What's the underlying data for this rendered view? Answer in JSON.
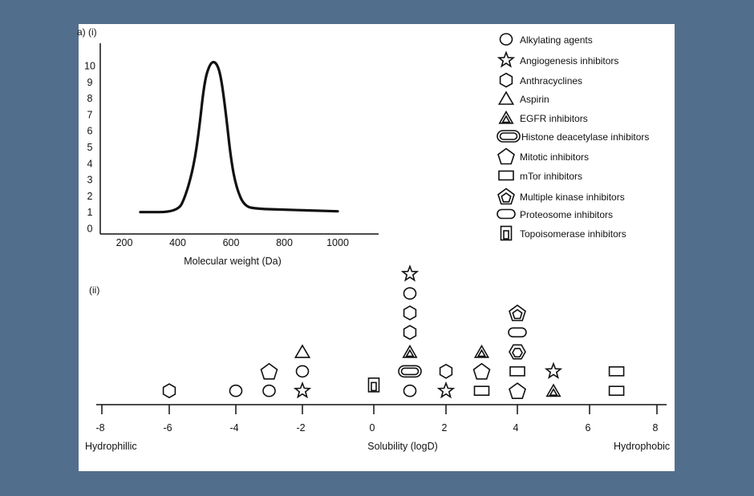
{
  "colors": {
    "background": "#526e8d",
    "panel": "#ffffff",
    "ink": "#111111"
  },
  "legend": [
    {
      "label": "Alkylating agents",
      "marker": "circle"
    },
    {
      "label": "Angiogenesis inhibitors",
      "marker": "star"
    },
    {
      "label": "Anthracyclines",
      "marker": "hexagon"
    },
    {
      "label": "Aspirin",
      "marker": "triangle"
    },
    {
      "label": "EGFR inhibitors",
      "marker": "double-triangle"
    },
    {
      "label": "Histone deacetylase inhibitors",
      "marker": "double-stadium"
    },
    {
      "label": "Mitotic inhibitors",
      "marker": "pentagon"
    },
    {
      "label": "mTor inhibitors",
      "marker": "rectangle"
    },
    {
      "label": "Multiple kinase inhibitors",
      "marker": "double-pentagon"
    },
    {
      "label": "Proteosome inhibitors",
      "marker": "stadium"
    },
    {
      "label": "Topoisomerase inhibitors",
      "marker": "double-square"
    }
  ],
  "chart_data": [
    {
      "type": "line",
      "panel_label": "a) (i)",
      "xlabel": "Molecular weight (Da)",
      "ylabel": "",
      "xticks": [
        200,
        400,
        600,
        800,
        1000
      ],
      "yticks": [
        0,
        1,
        2,
        3,
        4,
        5,
        6,
        7,
        8,
        9,
        10
      ],
      "xlim": [
        120,
        1150
      ],
      "ylim": [
        0,
        10.5
      ],
      "series": [
        {
          "name": "distribution",
          "x": [
            260,
            400,
            430,
            460,
            480,
            500,
            520,
            540,
            560,
            580,
            600,
            620,
            650,
            700,
            800,
            900,
            1000
          ],
          "y": [
            1,
            1,
            2,
            3.8,
            6,
            9,
            10.1,
            10.3,
            9.6,
            7.2,
            4.2,
            2.5,
            1.35,
            1.2,
            1.15,
            1.1,
            1.05
          ]
        }
      ]
    },
    {
      "type": "scatter",
      "panel_label": "(ii)",
      "xlabel": "Solubility (logD)",
      "left_label": "Hydrophillic",
      "right_label": "Hydrophobic",
      "xticks": [
        -8,
        -6,
        -4,
        -2,
        0,
        2,
        4,
        6,
        8
      ],
      "xlim": [
        -8,
        8.2
      ],
      "note": "stack = vertical stacking level of marker above axis",
      "points": [
        {
          "x": -6,
          "stack": 1,
          "marker": "hexagon"
        },
        {
          "x": -4,
          "stack": 1,
          "marker": "circle"
        },
        {
          "x": -3,
          "stack": 1,
          "marker": "circle"
        },
        {
          "x": -3,
          "stack": 2,
          "marker": "pentagon"
        },
        {
          "x": -2,
          "stack": 1,
          "marker": "star"
        },
        {
          "x": -2,
          "stack": 2,
          "marker": "circle"
        },
        {
          "x": -2,
          "stack": 3,
          "marker": "triangle"
        },
        {
          "x": 0,
          "stack": 1.3,
          "marker": "double-square"
        },
        {
          "x": 1,
          "stack": 1,
          "marker": "circle"
        },
        {
          "x": 1,
          "stack": 2,
          "marker": "double-stadium"
        },
        {
          "x": 1,
          "stack": 3,
          "marker": "double-triangle"
        },
        {
          "x": 1,
          "stack": 4,
          "marker": "hexagon"
        },
        {
          "x": 1,
          "stack": 5,
          "marker": "hexagon"
        },
        {
          "x": 1,
          "stack": 6,
          "marker": "circle"
        },
        {
          "x": 1,
          "stack": 7,
          "marker": "star"
        },
        {
          "x": 2,
          "stack": 1,
          "marker": "star"
        },
        {
          "x": 2,
          "stack": 2,
          "marker": "hexagon"
        },
        {
          "x": 3,
          "stack": 1,
          "marker": "rectangle"
        },
        {
          "x": 3,
          "stack": 2,
          "marker": "pentagon"
        },
        {
          "x": 3,
          "stack": 3,
          "marker": "double-triangle"
        },
        {
          "x": 4,
          "stack": 1,
          "marker": "pentagon"
        },
        {
          "x": 4,
          "stack": 2,
          "marker": "rectangle"
        },
        {
          "x": 4,
          "stack": 3,
          "marker": "double-hexagon"
        },
        {
          "x": 4,
          "stack": 4,
          "marker": "stadium"
        },
        {
          "x": 4,
          "stack": 5,
          "marker": "double-pentagon"
        },
        {
          "x": 5,
          "stack": 1,
          "marker": "double-triangle"
        },
        {
          "x": 5,
          "stack": 2,
          "marker": "star"
        },
        {
          "x": 6.8,
          "stack": 1,
          "marker": "rectangle"
        },
        {
          "x": 6.8,
          "stack": 2,
          "marker": "rectangle"
        }
      ]
    }
  ]
}
